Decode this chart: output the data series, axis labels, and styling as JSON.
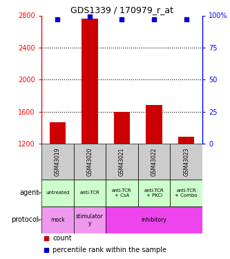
{
  "title": "GDS1339 / 170979_r_at",
  "samples": [
    "GSM43019",
    "GSM43020",
    "GSM43021",
    "GSM43022",
    "GSM43023"
  ],
  "counts": [
    1470,
    2760,
    1600,
    1680,
    1290
  ],
  "percentile_ranks": [
    97,
    99,
    97,
    97,
    97
  ],
  "ylim_left": [
    1200,
    2800
  ],
  "ylim_right": [
    0,
    100
  ],
  "yticks_left": [
    1200,
    1600,
    2000,
    2400,
    2800
  ],
  "yticks_right": [
    0,
    25,
    50,
    75,
    100
  ],
  "bar_color": "#cc0000",
  "dot_color": "#0000cc",
  "agent_labels": [
    "untreated",
    "anti-TCR",
    "anti-TCR\n+ CsA",
    "anti-TCR\n+ PKCi",
    "anti-TCR\n+ Combo"
  ],
  "agent_bg": "#ccffcc",
  "protocol_bg_light": "#ee99ee",
  "protocol_bg_dark": "#ee44ee",
  "sample_bg": "#cccccc",
  "legend_count_color": "#cc0000",
  "legend_pct_color": "#0000cc",
  "proto_items": [
    {
      "label": "mock",
      "start": 0,
      "end": 1,
      "bg": "#ee99ee"
    },
    {
      "label": "stimulator\ny",
      "start": 1,
      "end": 2,
      "bg": "#ee99ee"
    },
    {
      "label": "inhibitory",
      "start": 2,
      "end": 5,
      "bg": "#ee44ee"
    }
  ]
}
